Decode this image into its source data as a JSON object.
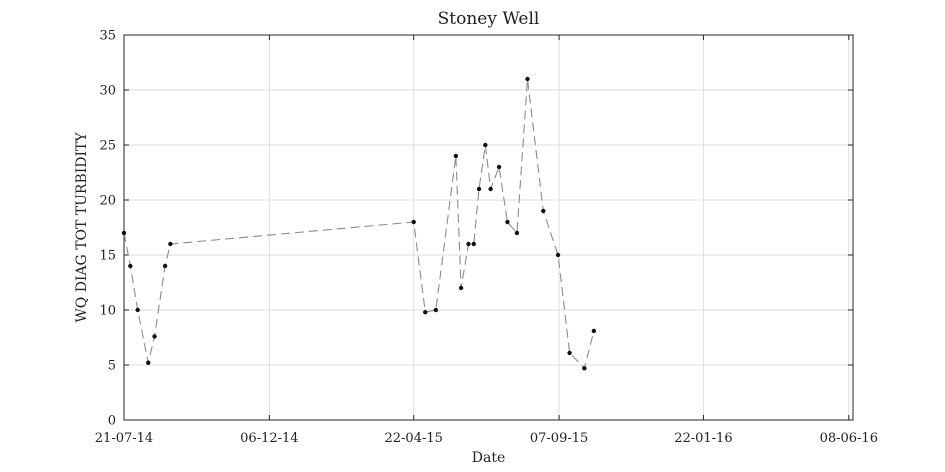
{
  "chart_data": {
    "type": "line",
    "title": "Stoney Well",
    "xlabel": "Date",
    "ylabel": "WQ DIAG TOT TURBIDITY",
    "xlim": [
      "2014-07-21",
      "2016-06-12"
    ],
    "ylim": [
      0,
      35
    ],
    "xticks": [
      {
        "date": "2014-07-21",
        "label": "21-07-14"
      },
      {
        "date": "2014-12-06",
        "label": "06-12-14"
      },
      {
        "date": "2015-04-22",
        "label": "22-04-15"
      },
      {
        "date": "2015-09-07",
        "label": "07-09-15"
      },
      {
        "date": "2016-01-22",
        "label": "22-01-16"
      },
      {
        "date": "2016-06-08",
        "label": "08-06-16"
      }
    ],
    "yticks": [
      0,
      5,
      10,
      15,
      20,
      25,
      30,
      35
    ],
    "grid": true,
    "series": [
      {
        "line_style": "dashed",
        "color": "#8c8c8c",
        "marker_color": "#111111",
        "points": [
          {
            "x": "2014-07-21",
            "y": 17
          },
          {
            "x": "2014-07-27",
            "y": 14
          },
          {
            "x": "2014-08-03",
            "y": 10
          },
          {
            "x": "2014-08-13",
            "y": 5.2
          },
          {
            "x": "2014-08-19",
            "y": 7.6
          },
          {
            "x": "2014-08-29",
            "y": 14
          },
          {
            "x": "2014-09-03",
            "y": 16
          },
          {
            "x": "2015-04-22",
            "y": 18
          },
          {
            "x": "2015-05-03",
            "y": 9.8
          },
          {
            "x": "2015-05-13",
            "y": 10
          },
          {
            "x": "2015-06-01",
            "y": 24
          },
          {
            "x": "2015-06-06",
            "y": 12
          },
          {
            "x": "2015-06-13",
            "y": 16
          },
          {
            "x": "2015-06-18",
            "y": 16
          },
          {
            "x": "2015-06-23",
            "y": 21
          },
          {
            "x": "2015-06-29",
            "y": 25
          },
          {
            "x": "2015-07-04",
            "y": 21
          },
          {
            "x": "2015-07-12",
            "y": 23
          },
          {
            "x": "2015-07-20",
            "y": 18
          },
          {
            "x": "2015-07-29",
            "y": 17
          },
          {
            "x": "2015-08-08",
            "y": 31
          },
          {
            "x": "2015-08-23",
            "y": 19
          },
          {
            "x": "2015-09-06",
            "y": 15
          },
          {
            "x": "2015-09-17",
            "y": 6.1
          },
          {
            "x": "2015-10-01",
            "y": 4.7
          },
          {
            "x": "2015-10-10",
            "y": 8.1
          }
        ]
      }
    ]
  }
}
